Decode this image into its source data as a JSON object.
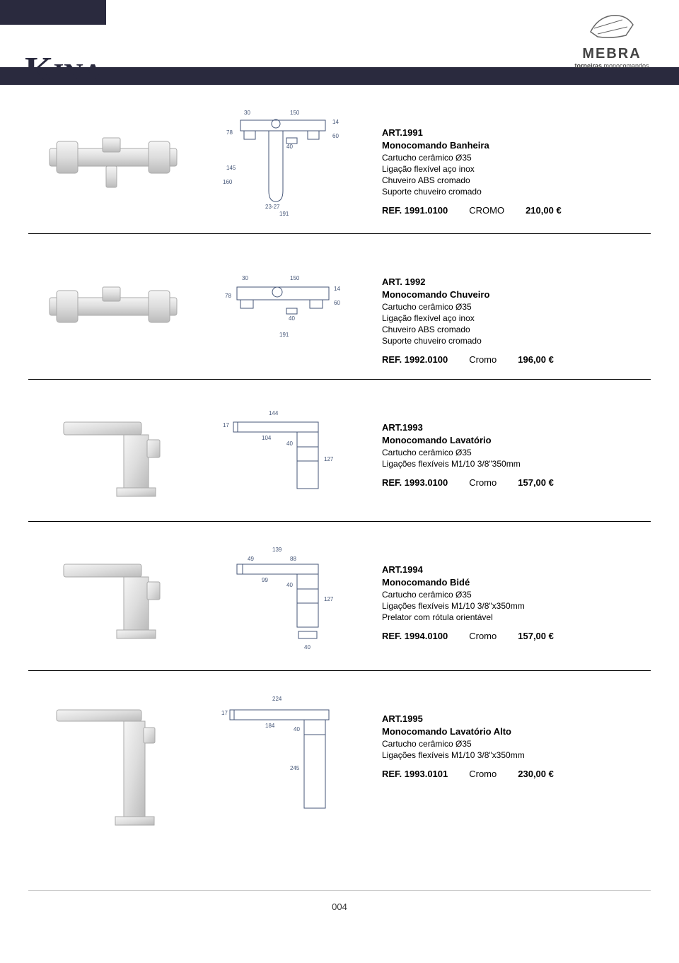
{
  "header": {
    "title_prefix": "K",
    "title_rest": "INA",
    "brand": "MEBRA",
    "brand_sub_bold": "torneiras",
    "brand_sub_rest": " monocomandos"
  },
  "products": [
    {
      "art": "ART.1991",
      "title": "Monocomando Banheira",
      "specs": [
        "Cartucho cerâmico Ø35",
        "Ligação flexível aço inox",
        "Chuveiro ABS cromado",
        "Suporte chuveiro cromado"
      ],
      "ref": "REF. 1991.0100",
      "finish": "CROMO",
      "price": "210,00 €",
      "diagram_dims": {
        "w1": "30",
        "w2": "150",
        "h1": "78",
        "h2": "145",
        "h3": "160",
        "d1": "40",
        "d2": "191",
        "d3": "23-27",
        "d4": "14",
        "d5": "60"
      }
    },
    {
      "art": "ART. 1992",
      "title": "Monocomando Chuveiro",
      "specs": [
        "Cartucho cerâmico Ø35",
        "Ligação flexível aço inox",
        "Chuveiro ABS cromado",
        "Suporte chuveiro cromado"
      ],
      "ref": "REF. 1992.0100",
      "finish": "Cromo",
      "price": "196,00 €",
      "diagram_dims": {
        "w1": "30",
        "w2": "150",
        "h1": "78",
        "d1": "40",
        "d2": "191",
        "d3": "14",
        "d4": "60"
      }
    },
    {
      "art": "ART.1993",
      "title": "Monocomando Lavatório",
      "specs": [
        "Cartucho cerâmico Ø35",
        "Ligações flexíveis M1/10 3/8\"350mm"
      ],
      "ref": "REF. 1993.0100",
      "finish": "Cromo",
      "price": "157,00 €",
      "diagram_dims": {
        "w1": "144",
        "w2": "104",
        "h1": "17",
        "h2": "40",
        "h3": "127"
      }
    },
    {
      "art": "ART.1994",
      "title": "Monocomando Bidé",
      "specs": [
        "Cartucho cerâmico Ø35",
        "Ligações flexíveis M1/10 3/8\"x350mm",
        "Prelator com rótula orientável"
      ],
      "ref": "REF. 1994.0100",
      "finish": "Cromo",
      "price": "157,00 €",
      "diagram_dims": {
        "w1": "139",
        "w2": "49",
        "w3": "88",
        "w4": "99",
        "h1": "40",
        "h2": "127",
        "h3": "40"
      }
    },
    {
      "art": "ART.1995",
      "title": "Monocomando Lavatório Alto",
      "specs": [
        "Cartucho cerâmico Ø35",
        "Ligações flexíveis M1/10 3/8\"x350mm"
      ],
      "ref": "REF. 1993.0101",
      "finish": "Cromo",
      "price": "230,00 €",
      "diagram_dims": {
        "w1": "224",
        "w2": "184",
        "h1": "17",
        "h2": "40",
        "h3": "245"
      }
    }
  ],
  "footer": {
    "page": "004"
  },
  "colors": {
    "header_bar": "#2a2a3e",
    "text": "#000000",
    "diagram_stroke": "#445577"
  }
}
